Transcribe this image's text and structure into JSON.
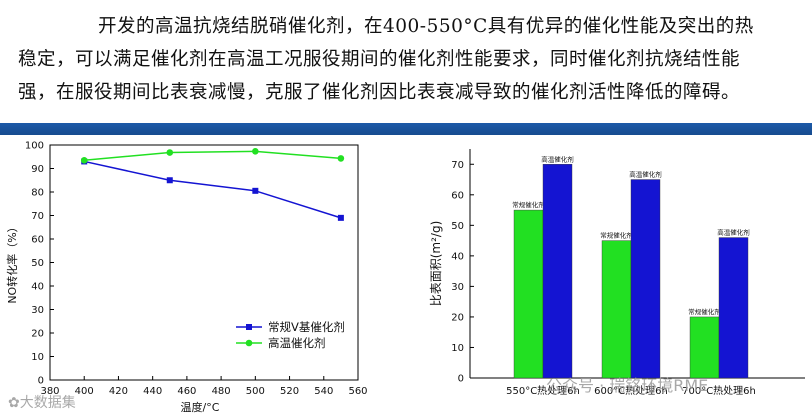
{
  "paragraph": {
    "line1": "开发的高温抗烧结脱硝催化剂，在400-550°C具有优异的催化性能及突出的热",
    "line2": "稳定，可以满足催化剂在高温工况服役期间的催化剂性能要求，同时催化剂抗烧结性能",
    "line3": "强，在服役期间比表衰减慢，克服了催化剂因比表衰减导致的催化剂活性降低的障碍。"
  },
  "colors": {
    "blue_series": "#1414d2",
    "green_series": "#22e022",
    "band": "#1d5aa8"
  },
  "chart_data": [
    {
      "type": "line",
      "xlabel": "温度/°C",
      "ylabel": "NO转化率（%）",
      "xlim": [
        380,
        560
      ],
      "ylim": [
        0,
        100
      ],
      "xticks": [
        380,
        400,
        420,
        440,
        460,
        480,
        500,
        520,
        540,
        560
      ],
      "yticks": [
        0,
        10,
        20,
        30,
        40,
        50,
        60,
        70,
        80,
        90,
        100
      ],
      "legend_position": "bottom-right",
      "series": [
        {
          "name": "常规V基催化剂",
          "x": [
            400,
            450,
            500,
            550
          ],
          "y": [
            93,
            85,
            80.5,
            69
          ]
        },
        {
          "name": "高温催化剂",
          "x": [
            400,
            450,
            500,
            550
          ],
          "y": [
            93.5,
            96.8,
            97.3,
            94.3
          ]
        }
      ]
    },
    {
      "type": "bar",
      "ylabel": "比表面积(m²/g)",
      "ylim": [
        0,
        75
      ],
      "yticks": [
        0,
        10,
        20,
        30,
        40,
        50,
        60,
        70
      ],
      "categories": [
        "550°C热处理6h",
        "600°C热处理6h",
        "700°C热处理6h"
      ],
      "series": [
        {
          "name": "常规催化剂",
          "values": [
            55,
            45,
            20
          ],
          "labels": [
            "常规催化剂",
            "常规催化剂",
            "常规催化剂"
          ]
        },
        {
          "name": "高温催化剂",
          "values": [
            70,
            65,
            46
          ],
          "labels": [
            "高温催化剂",
            "高温催化剂",
            "高温催化剂"
          ]
        }
      ]
    }
  ],
  "watermarks": {
    "left": "✿大数据集",
    "right": "公众号 · 瑞铭环境RME"
  }
}
